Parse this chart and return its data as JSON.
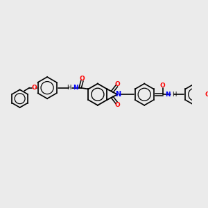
{
  "background_color": "#ebebeb",
  "bond_color": "#000000",
  "n_color": "#0000ff",
  "o_color": "#ff0000",
  "figsize": [
    3.0,
    3.0
  ],
  "dpi": 100,
  "xlim": [
    0,
    300
  ],
  "ylim": [
    0,
    300
  ]
}
